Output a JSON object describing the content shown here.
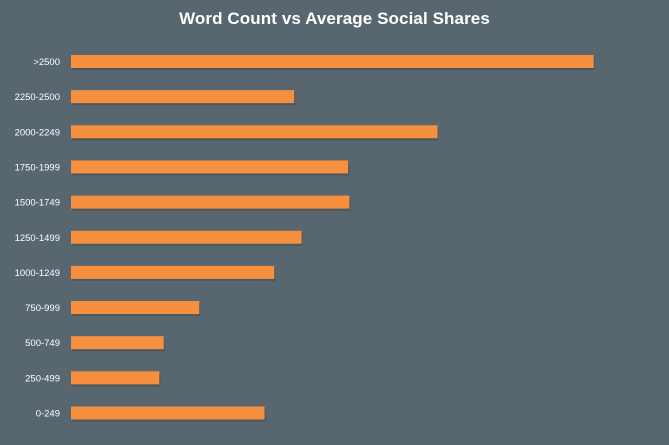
{
  "chart_data": {
    "type": "bar",
    "orientation": "horizontal",
    "title": "Word Count vs Average Social Shares",
    "xlabel": "",
    "ylabel": "",
    "categories": [
      ">2500",
      "2250-2500",
      "2000-2249",
      "1750-1999",
      "1500-1749",
      "1250-1499",
      "1000-1249",
      "750-999",
      "500-749",
      "250-499",
      "0-249"
    ],
    "values": [
      8859,
      3782,
      6214,
      4697,
      4718,
      3908,
      3445,
      2174,
      1572,
      1497,
      3280
    ],
    "xlim": [
      0,
      9000
    ],
    "grid": false,
    "colors": {
      "background": "#586670",
      "bar": "#f7903e",
      "bar_shadow": "#3f4a51",
      "text": "#ffffff"
    }
  }
}
